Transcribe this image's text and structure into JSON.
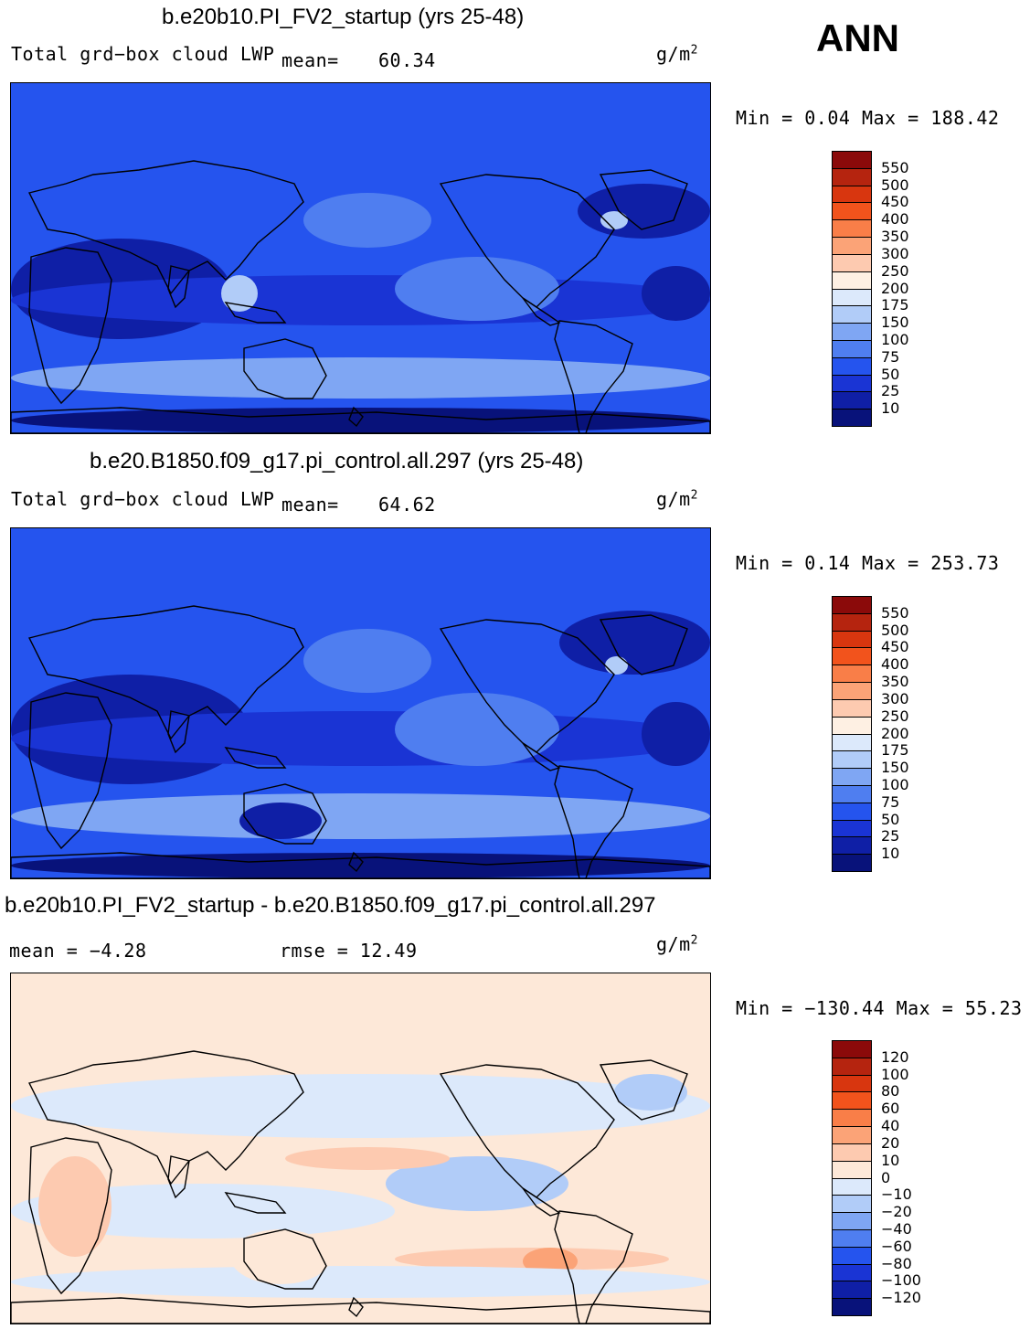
{
  "season": "ANN",
  "units": {
    "base": "g/m",
    "exp": "2"
  },
  "panels": [
    {
      "title": "b.e20b10.PI_FV2_startup (yrs 25-48)",
      "left_label": "Total grd−box cloud LWP",
      "mean_label": "mean=",
      "mean_value": "60.34",
      "minmax": "Min =    0.04 Max =  188.42",
      "palette": "abs",
      "colorbar_ticks": [
        "550",
        "500",
        "450",
        "400",
        "350",
        "300",
        "250",
        "200",
        "175",
        "150",
        "100",
        "75",
        "50",
        "25",
        "10"
      ]
    },
    {
      "title": "b.e20.B1850.f09_g17.pi_control.all.297 (yrs 25-48)",
      "left_label": "Total grd−box cloud LWP",
      "mean_label": "mean=",
      "mean_value": "64.62",
      "minmax": "Min =    0.14 Max =  253.73",
      "palette": "abs",
      "colorbar_ticks": [
        "550",
        "500",
        "450",
        "400",
        "350",
        "300",
        "250",
        "200",
        "175",
        "150",
        "100",
        "75",
        "50",
        "25",
        "10"
      ]
    },
    {
      "title": "b.e20b10.PI_FV2_startup - b.e20.B1850.f09_g17.pi_control.all.297",
      "mean_text": "mean =   −4.28",
      "rmse_text": "rmse =   12.49",
      "minmax": "Min = −130.44 Max =   55.23",
      "palette": "diff",
      "colorbar_ticks": [
        "120",
        "100",
        "80",
        "60",
        "40",
        "20",
        "10",
        "0",
        "−10",
        "−20",
        "−40",
        "−60",
        "−80",
        "−100",
        "−120"
      ]
    }
  ],
  "colors": {
    "abs_bar": [
      "#8b0a0a",
      "#b5240f",
      "#d8360f",
      "#f2531c",
      "#f97e48",
      "#fba377",
      "#fdcab0",
      "#fef0e3",
      "#dce9fb",
      "#b1ccf8",
      "#7fa6f3",
      "#4f7ef0",
      "#2554ee",
      "#1a34d4",
      "#0f1fa6",
      "#08127a"
    ],
    "diff_bar": [
      "#8b0a0a",
      "#b5240f",
      "#d8360f",
      "#f2531c",
      "#f97e48",
      "#fba377",
      "#fdcab0",
      "#fde8d8",
      "#dce9fb",
      "#b1ccf8",
      "#7fa6f3",
      "#4f7ef0",
      "#2554ee",
      "#1a34d4",
      "#0f1fa6",
      "#08127a"
    ]
  }
}
